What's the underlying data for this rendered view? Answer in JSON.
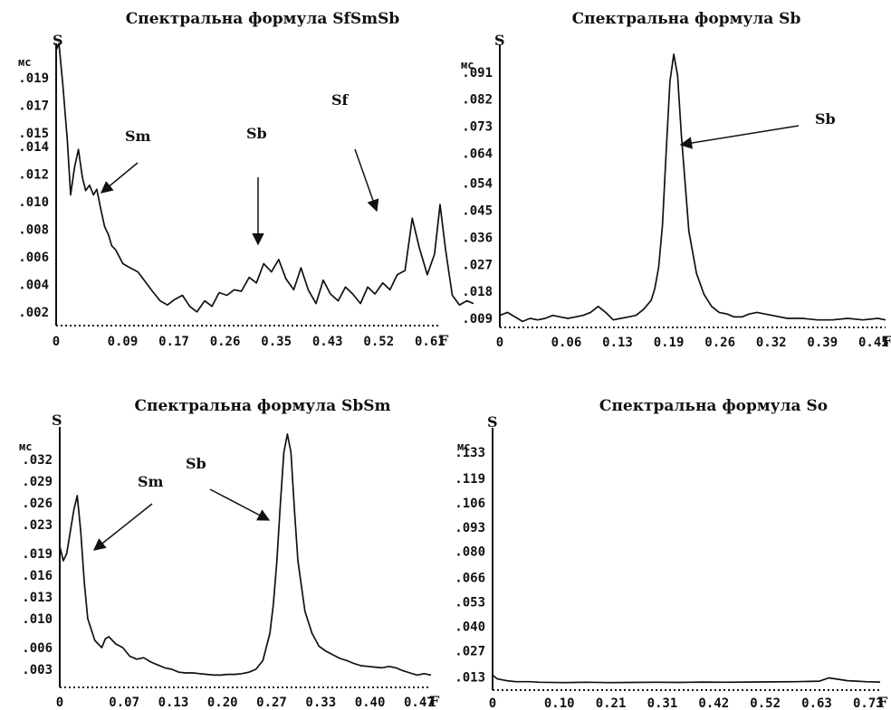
{
  "chart_data": [
    {
      "type": "line",
      "title": "Спектральна формула SfSmSb",
      "ylabel": "S",
      "yunit": "мс",
      "xlabel": "F",
      "ytick_labels": [
        ".019",
        ".017",
        ".015",
        ".014",
        ".012",
        ".010",
        ".008",
        ".006",
        ".004",
        ".002"
      ],
      "yticks": [
        0.019,
        0.017,
        0.015,
        0.014,
        0.012,
        0.01,
        0.008,
        0.006,
        0.004,
        0.002
      ],
      "xtick_labels": [
        "0",
        "0.09",
        "0.17",
        "0.26",
        "0.35",
        "0.43",
        "0.52",
        "0.61"
      ],
      "xticks": [
        0,
        0.09,
        0.17,
        0.26,
        0.35,
        0.43,
        0.52,
        0.61
      ],
      "xlim": [
        0,
        0.69
      ],
      "ylim": [
        0.001,
        0.0215
      ],
      "series": [
        {
          "x": [
            0,
            0.005,
            0.012,
            0.02,
            0.026,
            0.033,
            0.04,
            0.047,
            0.053,
            0.06,
            0.067,
            0.073,
            0.08,
            0.087,
            0.094,
            0.1,
            0.107,
            0.12,
            0.133,
            0.147,
            0.16,
            0.173,
            0.187,
            0.2,
            0.213,
            0.227,
            0.24,
            0.253,
            0.267,
            0.28,
            0.293,
            0.307,
            0.32,
            0.333,
            0.347,
            0.36,
            0.373,
            0.387,
            0.4,
            0.413,
            0.427,
            0.44,
            0.453,
            0.467,
            0.48,
            0.493,
            0.507,
            0.52,
            0.533,
            0.547,
            0.56,
            0.573,
            0.587,
            0.6,
            0.613,
            0.627,
            0.64,
            0.653,
            0.667,
            0.68,
            0.69
          ],
          "y": [
            0.021,
            0.0215,
            0.0185,
            0.0145,
            0.0105,
            0.0125,
            0.0138,
            0.0118,
            0.0108,
            0.0112,
            0.0105,
            0.0109,
            0.0095,
            0.0082,
            0.0076,
            0.0068,
            0.0065,
            0.0055,
            0.0052,
            0.0049,
            0.0042,
            0.0035,
            0.0028,
            0.0025,
            0.0029,
            0.0032,
            0.0024,
            0.002,
            0.0028,
            0.0024,
            0.0034,
            0.0032,
            0.0036,
            0.0035,
            0.0045,
            0.0041,
            0.0055,
            0.0049,
            0.0058,
            0.0044,
            0.0036,
            0.0052,
            0.0036,
            0.0026,
            0.0043,
            0.0033,
            0.0028,
            0.0038,
            0.0033,
            0.0026,
            0.0038,
            0.0033,
            0.0041,
            0.0036,
            0.0047,
            0.005,
            0.0088,
            0.0066,
            0.0047,
            0.0062,
            0.0098
          ],
          "x_tail": [
            0.7,
            0.712,
            0.725,
            0.738,
            0.75
          ],
          "y_tail": [
            0.0065,
            0.0032,
            0.0025,
            0.0028,
            0.0026
          ]
        }
      ],
      "annotations": [
        "Sm",
        "Sb",
        "Sf"
      ]
    },
    {
      "type": "line",
      "title": "Спектральна формула Sb",
      "ylabel": "S",
      "yunit": "мс",
      "xlabel": "F",
      "ytick_labels": [
        ".091",
        ".082",
        ".073",
        ".064",
        ".054",
        ".045",
        ".036",
        ".027",
        ".018",
        ".009"
      ],
      "yticks": [
        0.091,
        0.082,
        0.073,
        0.064,
        0.054,
        0.045,
        0.036,
        0.027,
        0.018,
        0.009
      ],
      "xtick_labels": [
        "0",
        "0.06",
        "0.13",
        "0.19",
        "0.26",
        "0.32",
        "0.39",
        "0.45"
      ],
      "xticks": [
        0,
        0.06,
        0.13,
        0.19,
        0.26,
        0.32,
        0.39,
        0.45
      ],
      "xlim": [
        0,
        0.51
      ],
      "ylim": [
        0.006,
        0.1
      ],
      "series": [
        {
          "x": [
            0,
            0.01,
            0.02,
            0.03,
            0.04,
            0.05,
            0.06,
            0.07,
            0.08,
            0.09,
            0.1,
            0.11,
            0.12,
            0.13,
            0.14,
            0.15,
            0.16,
            0.17,
            0.18,
            0.19,
            0.2,
            0.205,
            0.21,
            0.215,
            0.22,
            0.225,
            0.23,
            0.235,
            0.24,
            0.25,
            0.26,
            0.27,
            0.28,
            0.29,
            0.3,
            0.31,
            0.32,
            0.33,
            0.34,
            0.36,
            0.38,
            0.4,
            0.42,
            0.44,
            0.46,
            0.48,
            0.5,
            0.51
          ],
          "y": [
            0.01,
            0.011,
            0.0095,
            0.008,
            0.009,
            0.0085,
            0.009,
            0.01,
            0.0095,
            0.009,
            0.0095,
            0.01,
            0.011,
            0.013,
            0.011,
            0.0085,
            0.009,
            0.0095,
            0.01,
            0.012,
            0.015,
            0.019,
            0.026,
            0.04,
            0.065,
            0.088,
            0.097,
            0.09,
            0.07,
            0.038,
            0.024,
            0.017,
            0.013,
            0.011,
            0.0105,
            0.0095,
            0.0095,
            0.0105,
            0.011,
            0.01,
            0.009,
            0.009,
            0.0085,
            0.0085,
            0.009,
            0.0085,
            0.009,
            0.0085
          ]
        }
      ],
      "annotations": [
        "Sb"
      ]
    },
    {
      "type": "line",
      "title": "Спектральна формула SbSm",
      "ylabel": "S",
      "yunit": "мс",
      "xlabel": "F",
      "ytick_labels": [
        ".032",
        ".029",
        ".026",
        ".023",
        ".019",
        ".016",
        ".013",
        ".010",
        ".006",
        ".003"
      ],
      "yticks": [
        0.032,
        0.029,
        0.026,
        0.023,
        0.019,
        0.016,
        0.013,
        0.01,
        0.006,
        0.003
      ],
      "xtick_labels": [
        "0",
        "0.07",
        "0.13",
        "0.20",
        "0.27",
        "0.33",
        "0.40",
        "0.47"
      ],
      "xticks": [
        0,
        0.07,
        0.13,
        0.2,
        0.27,
        0.33,
        0.4,
        0.47
      ],
      "xlim": [
        0,
        0.53
      ],
      "ylim": [
        0.0005,
        0.0365
      ],
      "series": [
        {
          "x": [
            0,
            0.005,
            0.01,
            0.015,
            0.02,
            0.025,
            0.03,
            0.035,
            0.04,
            0.045,
            0.05,
            0.055,
            0.06,
            0.065,
            0.07,
            0.08,
            0.09,
            0.1,
            0.11,
            0.12,
            0.13,
            0.14,
            0.15,
            0.16,
            0.17,
            0.18,
            0.19,
            0.2,
            0.21,
            0.22,
            0.23,
            0.24,
            0.25,
            0.26,
            0.27,
            0.28,
            0.29,
            0.3,
            0.305,
            0.31,
            0.315,
            0.32,
            0.325,
            0.33,
            0.335,
            0.34,
            0.35,
            0.36,
            0.37,
            0.38,
            0.39,
            0.4,
            0.41,
            0.42,
            0.43,
            0.44,
            0.45,
            0.46,
            0.47,
            0.48,
            0.49,
            0.5,
            0.51,
            0.52,
            0.53
          ],
          "y": [
            0.02,
            0.018,
            0.019,
            0.022,
            0.025,
            0.027,
            0.022,
            0.015,
            0.01,
            0.0085,
            0.007,
            0.0065,
            0.006,
            0.0072,
            0.0075,
            0.0065,
            0.006,
            0.0048,
            0.0044,
            0.0046,
            0.004,
            0.0036,
            0.0032,
            0.003,
            0.0026,
            0.0025,
            0.0025,
            0.0024,
            0.0023,
            0.0022,
            0.0022,
            0.0023,
            0.0023,
            0.0024,
            0.0026,
            0.003,
            0.0042,
            0.008,
            0.012,
            0.018,
            0.026,
            0.033,
            0.0355,
            0.033,
            0.025,
            0.018,
            0.011,
            0.008,
            0.0062,
            0.0055,
            0.005,
            0.0045,
            0.0042,
            0.0038,
            0.0035,
            0.0034,
            0.0033,
            0.0032,
            0.0034,
            0.0032,
            0.0028,
            0.0025,
            0.0022,
            0.0024,
            0.0022
          ]
        }
      ],
      "annotations": [
        "Sm",
        "Sb"
      ]
    },
    {
      "type": "line",
      "title": "Спектральна формула So",
      "ylabel": "S",
      "yunit": "мс",
      "xlabel": "F",
      "ytick_labels": [
        ".133",
        ".119",
        ".106",
        ".093",
        ".080",
        ".066",
        ".053",
        ".040",
        ".027",
        ".013"
      ],
      "yticks": [
        0.133,
        0.119,
        0.106,
        0.093,
        0.08,
        0.066,
        0.053,
        0.04,
        0.027,
        0.013
      ],
      "xtick_labels": [
        "0",
        "0.10",
        "0.21",
        "0.31",
        "0.42",
        "0.52",
        "0.63",
        "0.73"
      ],
      "xticks": [
        0,
        0.1,
        0.21,
        0.31,
        0.42,
        0.52,
        0.63,
        0.73
      ],
      "xlim": [
        0,
        0.83
      ],
      "ylim": [
        0.006,
        0.146
      ],
      "series": [
        {
          "x": [
            0,
            0.01,
            0.02,
            0.03,
            0.05,
            0.08,
            0.1,
            0.15,
            0.2,
            0.25,
            0.3,
            0.35,
            0.4,
            0.45,
            0.5,
            0.55,
            0.6,
            0.65,
            0.7,
            0.72,
            0.74,
            0.76,
            0.78,
            0.8,
            0.83
          ],
          "y": [
            0.014,
            0.012,
            0.0115,
            0.011,
            0.0105,
            0.0105,
            0.0102,
            0.01,
            0.0102,
            0.01,
            0.0101,
            0.0102,
            0.0101,
            0.0103,
            0.0102,
            0.0103,
            0.0104,
            0.0105,
            0.0108,
            0.0125,
            0.0118,
            0.011,
            0.0108,
            0.0105,
            0.0103
          ]
        }
      ],
      "annotations": []
    }
  ]
}
